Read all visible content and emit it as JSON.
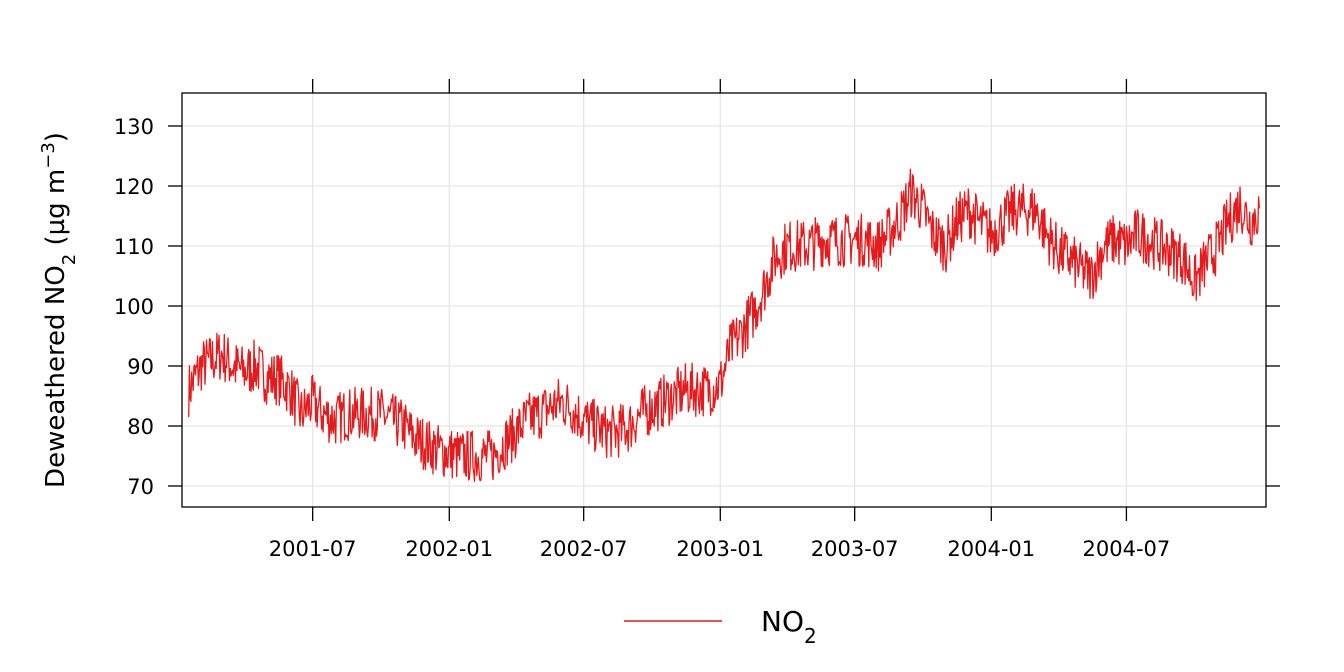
{
  "chart_data": {
    "type": "line",
    "ylabel": {
      "prefix": "Deweathered NO",
      "sub": "2",
      "unit_open": " (µg m",
      "sup": "−3",
      "unit_close": ")"
    },
    "xlabel": "",
    "x_ticks": [
      {
        "date": "2001-07-01",
        "label": "2001-07"
      },
      {
        "date": "2002-01-01",
        "label": "2002-01"
      },
      {
        "date": "2002-07-01",
        "label": "2002-07"
      },
      {
        "date": "2003-01-01",
        "label": "2003-01"
      },
      {
        "date": "2003-07-01",
        "label": "2003-07"
      },
      {
        "date": "2004-01-01",
        "label": "2004-01"
      },
      {
        "date": "2004-07-01",
        "label": "2004-07"
      }
    ],
    "y_ticks": [
      70,
      80,
      90,
      100,
      110,
      120,
      130
    ],
    "xlim": [
      "2001-01-06",
      "2005-01-05"
    ],
    "ylim": [
      66.5,
      135.5
    ],
    "grid": true,
    "legend_position": "bottom",
    "series": [
      {
        "legend": {
          "prefix": "NO",
          "sub": "2"
        },
        "color": "#e41a1c",
        "points": [
          [
            "2001-01-15",
            86
          ],
          [
            "2001-02-01",
            90
          ],
          [
            "2001-02-15",
            91
          ],
          [
            "2001-03-01",
            92
          ],
          [
            "2001-03-15",
            90
          ],
          [
            "2001-04-01",
            89
          ],
          [
            "2001-04-15",
            90
          ],
          [
            "2001-05-01",
            88
          ],
          [
            "2001-05-15",
            88
          ],
          [
            "2001-06-01",
            86
          ],
          [
            "2001-06-15",
            82
          ],
          [
            "2001-07-01",
            84
          ],
          [
            "2001-07-15",
            82
          ],
          [
            "2001-08-01",
            81
          ],
          [
            "2001-08-15",
            82
          ],
          [
            "2001-09-01",
            82
          ],
          [
            "2001-09-15",
            82
          ],
          [
            "2001-10-01",
            82
          ],
          [
            "2001-10-15",
            81
          ],
          [
            "2001-11-01",
            80
          ],
          [
            "2001-11-15",
            78
          ],
          [
            "2001-12-01",
            77
          ],
          [
            "2001-12-15",
            76
          ],
          [
            "2002-01-01",
            75.5
          ],
          [
            "2002-01-15",
            75
          ],
          [
            "2002-02-01",
            75
          ],
          [
            "2002-02-15",
            75
          ],
          [
            "2002-03-01",
            75
          ],
          [
            "2002-03-15",
            77
          ],
          [
            "2002-04-01",
            79
          ],
          [
            "2002-04-15",
            81
          ],
          [
            "2002-05-01",
            82
          ],
          [
            "2002-05-15",
            83
          ],
          [
            "2002-06-01",
            84
          ],
          [
            "2002-06-15",
            83
          ],
          [
            "2002-07-01",
            81
          ],
          [
            "2002-07-15",
            80
          ],
          [
            "2002-08-01",
            79
          ],
          [
            "2002-08-15",
            79
          ],
          [
            "2002-09-01",
            80
          ],
          [
            "2002-09-15",
            82
          ],
          [
            "2002-10-01",
            83
          ],
          [
            "2002-10-15",
            84
          ],
          [
            "2002-11-01",
            85
          ],
          [
            "2002-11-15",
            86
          ],
          [
            "2002-12-01",
            86
          ],
          [
            "2002-12-15",
            86
          ],
          [
            "2003-01-01",
            87
          ],
          [
            "2003-01-15",
            93
          ],
          [
            "2003-02-01",
            96
          ],
          [
            "2003-02-15",
            99
          ],
          [
            "2003-03-01",
            103
          ],
          [
            "2003-03-15",
            108
          ],
          [
            "2003-04-01",
            110
          ],
          [
            "2003-04-15",
            110
          ],
          [
            "2003-05-01",
            110
          ],
          [
            "2003-05-15",
            111
          ],
          [
            "2003-06-01",
            111
          ],
          [
            "2003-06-15",
            111
          ],
          [
            "2003-07-01",
            111
          ],
          [
            "2003-07-15",
            111
          ],
          [
            "2003-08-01",
            110
          ],
          [
            "2003-08-15",
            112
          ],
          [
            "2003-09-01",
            115
          ],
          [
            "2003-09-15",
            119
          ],
          [
            "2003-10-01",
            116
          ],
          [
            "2003-10-15",
            112
          ],
          [
            "2003-11-01",
            110
          ],
          [
            "2003-11-15",
            114
          ],
          [
            "2003-12-01",
            116
          ],
          [
            "2003-12-15",
            114
          ],
          [
            "2004-01-01",
            112
          ],
          [
            "2004-01-15",
            114
          ],
          [
            "2004-02-01",
            116
          ],
          [
            "2004-02-15",
            116
          ],
          [
            "2004-03-01",
            116
          ],
          [
            "2004-03-15",
            112
          ],
          [
            "2004-04-01",
            109
          ],
          [
            "2004-04-15",
            108
          ],
          [
            "2004-05-01",
            106
          ],
          [
            "2004-05-15",
            105
          ],
          [
            "2004-06-01",
            110
          ],
          [
            "2004-06-15",
            111
          ],
          [
            "2004-07-01",
            110
          ],
          [
            "2004-07-15",
            112
          ],
          [
            "2004-08-01",
            111
          ],
          [
            "2004-08-15",
            110
          ],
          [
            "2004-09-01",
            109
          ],
          [
            "2004-09-15",
            108
          ],
          [
            "2004-10-01",
            104
          ],
          [
            "2004-10-15",
            107
          ],
          [
            "2004-11-01",
            110
          ],
          [
            "2004-11-15",
            114
          ],
          [
            "2004-12-01",
            117
          ],
          [
            "2004-12-15",
            114
          ],
          [
            "2004-12-27",
            116
          ]
        ]
      }
    ]
  }
}
